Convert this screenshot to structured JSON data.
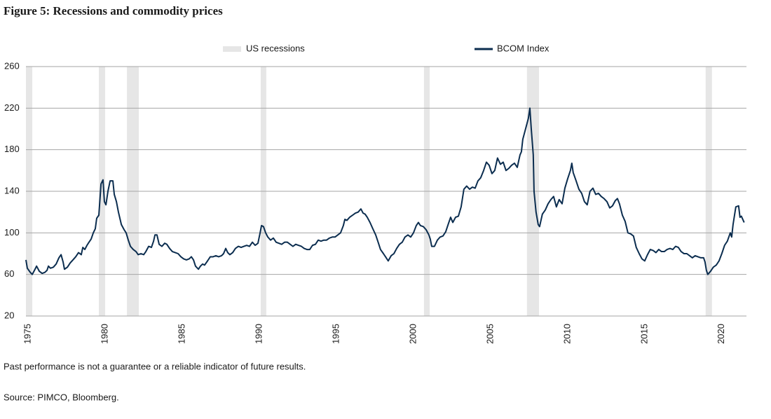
{
  "chart_data": {
    "type": "line",
    "title": "Figure 5: Recessions and commodity prices",
    "footnote": "Past performance is not a guarantee or a reliable indicator of future results.",
    "source": "Source: PIMCO, Bloomberg.",
    "x": [
      1974.86,
      1974.95,
      1975.14,
      1975.27,
      1975.45,
      1975.55,
      1975.73,
      1975.91,
      1976.09,
      1976.23,
      1976.32,
      1976.45,
      1976.64,
      1976.82,
      1977.0,
      1977.14,
      1977.27,
      1977.36,
      1977.55,
      1977.73,
      1977.91,
      1978.09,
      1978.27,
      1978.45,
      1978.55,
      1978.68,
      1978.82,
      1978.95,
      1979.09,
      1979.23,
      1979.36,
      1979.45,
      1979.59,
      1979.73,
      1979.86,
      1979.95,
      1980.05,
      1980.18,
      1980.32,
      1980.5,
      1980.59,
      1980.73,
      1980.86,
      1981.05,
      1981.23,
      1981.36,
      1981.5,
      1981.64,
      1981.82,
      1982.0,
      1982.14,
      1982.32,
      1982.5,
      1982.64,
      1982.82,
      1983.0,
      1983.14,
      1983.23,
      1983.36,
      1983.5,
      1983.68,
      1983.86,
      1984.0,
      1984.18,
      1984.36,
      1984.55,
      1984.73,
      1984.91,
      1985.09,
      1985.27,
      1985.45,
      1985.59,
      1985.73,
      1985.86,
      1986.05,
      1986.18,
      1986.32,
      1986.45,
      1986.64,
      1986.82,
      1987.0,
      1987.18,
      1987.36,
      1987.55,
      1987.68,
      1987.82,
      1987.95,
      1988.09,
      1988.27,
      1988.45,
      1988.64,
      1988.82,
      1989.0,
      1989.18,
      1989.36,
      1989.55,
      1989.73,
      1989.91,
      1990.05,
      1990.14,
      1990.27,
      1990.41,
      1990.55,
      1990.73,
      1990.91,
      1991.09,
      1991.27,
      1991.45,
      1991.64,
      1991.82,
      1992.0,
      1992.18,
      1992.36,
      1992.55,
      1992.73,
      1992.91,
      1993.09,
      1993.27,
      1993.45,
      1993.64,
      1993.82,
      1994.0,
      1994.18,
      1994.36,
      1994.55,
      1994.73,
      1994.91,
      1995.09,
      1995.27,
      1995.45,
      1995.55,
      1995.68,
      1995.86,
      1996.05,
      1996.23,
      1996.41,
      1996.59,
      1996.73,
      1996.86,
      1997.0,
      1997.18,
      1997.36,
      1997.55,
      1997.73,
      1997.86,
      1998.05,
      1998.23,
      1998.36,
      1998.55,
      1998.73,
      1998.91,
      1999.09,
      1999.27,
      1999.45,
      1999.64,
      1999.82,
      2000.0,
      2000.18,
      2000.32,
      2000.45,
      2000.64,
      2000.82,
      2001.0,
      2001.09,
      2001.18,
      2001.36,
      2001.55,
      2001.73,
      2001.91,
      2002.09,
      2002.27,
      2002.41,
      2002.55,
      2002.73,
      2002.91,
      2003.09,
      2003.27,
      2003.45,
      2003.64,
      2003.82,
      2004.0,
      2004.18,
      2004.36,
      2004.55,
      2004.73,
      2004.91,
      2005.09,
      2005.27,
      2005.45,
      2005.64,
      2005.82,
      2006.0,
      2006.18,
      2006.36,
      2006.55,
      2006.73,
      2006.91,
      2007.0,
      2007.09,
      2007.27,
      2007.45,
      2007.55,
      2007.64,
      2007.77,
      2007.82,
      2007.95,
      2008.09,
      2008.18,
      2008.36,
      2008.55,
      2008.73,
      2008.91,
      2009.09,
      2009.27,
      2009.45,
      2009.64,
      2009.82,
      2010.0,
      2010.18,
      2010.27,
      2010.36,
      2010.55,
      2010.73,
      2010.91,
      2011.09,
      2011.27,
      2011.45,
      2011.64,
      2011.82,
      2012.0,
      2012.18,
      2012.36,
      2012.55,
      2012.73,
      2012.91,
      2013.09,
      2013.23,
      2013.36,
      2013.55,
      2013.73,
      2013.91,
      2014.09,
      2014.27,
      2014.45,
      2014.64,
      2014.82,
      2015.0,
      2015.18,
      2015.36,
      2015.55,
      2015.73,
      2015.91,
      2016.09,
      2016.27,
      2016.45,
      2016.64,
      2016.82,
      2017.0,
      2017.18,
      2017.36,
      2017.55,
      2017.73,
      2017.91,
      2018.09,
      2018.27,
      2018.45,
      2018.64,
      2018.82,
      2018.91,
      2019.0,
      2019.09,
      2019.27,
      2019.45,
      2019.64,
      2019.82,
      2020.0,
      2020.18,
      2020.36,
      2020.55,
      2020.64,
      2020.73,
      2020.91,
      2021.09,
      2021.18,
      2021.27,
      2021.36,
      2021.45
    ],
    "series": [
      {
        "name": "BCOM Index",
        "color": "#0b2d4f",
        "values": [
          74,
          66,
          62,
          60,
          65,
          68,
          63,
          61,
          62,
          64,
          68,
          66,
          67,
          70,
          76,
          79,
          72,
          65,
          67,
          71,
          74,
          77,
          81,
          79,
          86,
          84,
          88,
          91,
          94,
          100,
          104,
          114,
          117,
          147,
          151,
          130,
          127,
          140,
          150,
          150,
          137,
          130,
          120,
          108,
          103,
          100,
          93,
          87,
          84,
          82,
          79,
          80,
          79,
          82,
          87,
          86,
          92,
          98,
          98,
          89,
          87,
          90,
          89,
          85,
          82,
          81,
          80,
          77,
          75,
          74,
          75,
          77,
          74,
          68,
          65,
          68,
          70,
          69,
          73,
          77,
          77,
          78,
          77,
          78,
          80,
          85,
          81,
          79,
          81,
          85,
          87,
          86,
          87,
          88,
          87,
          91,
          88,
          90,
          100,
          107,
          106,
          100,
          96,
          93,
          95,
          91,
          90,
          89,
          91,
          91,
          89,
          87,
          89,
          88,
          87,
          85,
          84,
          84,
          88,
          89,
          93,
          92,
          93,
          93,
          95,
          96,
          96,
          98,
          100,
          107,
          113,
          112,
          115,
          117,
          119,
          120,
          123,
          119,
          118,
          115,
          110,
          104,
          98,
          90,
          84,
          80,
          76,
          73,
          78,
          80,
          85,
          89,
          91,
          96,
          98,
          96,
          100,
          107,
          110,
          107,
          106,
          103,
          98,
          94,
          87,
          87,
          93,
          96,
          97,
          101,
          109,
          115,
          110,
          115,
          116,
          125,
          142,
          145,
          142,
          144,
          143,
          150,
          153,
          160,
          168,
          165,
          157,
          160,
          172,
          166,
          168,
          160,
          162,
          165,
          167,
          163,
          175,
          178,
          190,
          200,
          210,
          220,
          200,
          175,
          140,
          120,
          108,
          106,
          118,
          122,
          128,
          132,
          135,
          125,
          132,
          128,
          143,
          152,
          160,
          167,
          158,
          150,
          142,
          138,
          130,
          127,
          140,
          143,
          137,
          138,
          135,
          133,
          130,
          124,
          126,
          131,
          133,
          128,
          117,
          111,
          100,
          99,
          97,
          86,
          80,
          75,
          73,
          79,
          84,
          83,
          81,
          84,
          82,
          82,
          84,
          85,
          84,
          87,
          86,
          82,
          80,
          80,
          78,
          76,
          78,
          77,
          76,
          76,
          72,
          64,
          60,
          63,
          67,
          69,
          73,
          80,
          88,
          92,
          100,
          96,
          108,
          125,
          126,
          115,
          116,
          113,
          110
        ]
      }
    ],
    "recessions": {
      "name": "US recessions",
      "color": "#e6e6e6",
      "periods": [
        [
          1974.86,
          1975.27
        ],
        [
          1979.59,
          1980.0
        ],
        [
          1981.41,
          1982.18
        ],
        [
          1990.09,
          1990.45
        ],
        [
          2000.68,
          2001.05
        ],
        [
          2007.36,
          2008.14
        ],
        [
          2018.95,
          2019.36
        ]
      ]
    },
    "xlim": [
      1974.86,
      2021.6
    ],
    "xticks": [
      1975,
      1980,
      1985,
      1990,
      1995,
      2000,
      2005,
      2010,
      2015,
      2020
    ],
    "ylim": [
      20,
      260
    ],
    "yticks": [
      20,
      60,
      100,
      140,
      180,
      220,
      260
    ],
    "grid": true
  }
}
